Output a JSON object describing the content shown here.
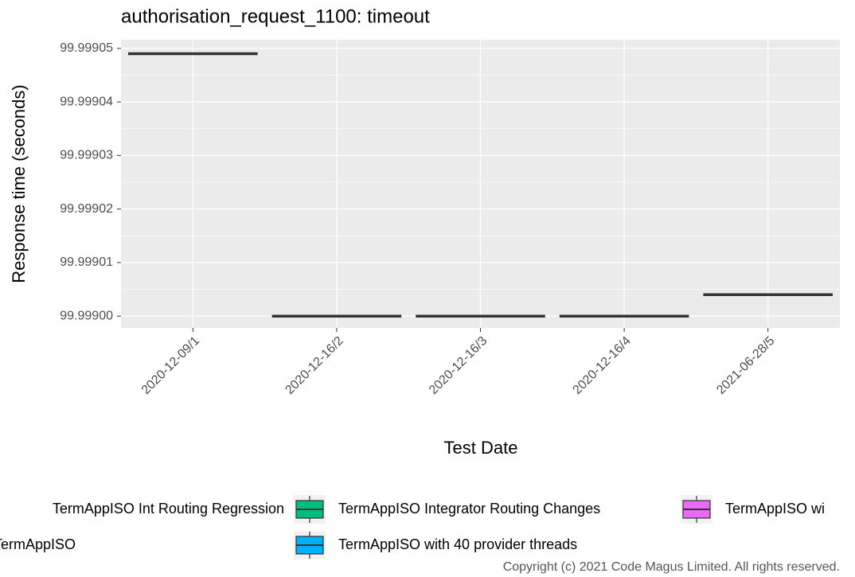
{
  "chart_data": {
    "type": "boxplot",
    "title": "authorisation_request_1100: timeout",
    "x_label": "Test Date",
    "y_label": "Response time (seconds)",
    "categories": [
      "2020-12-09/1",
      "2020-12-16/2",
      "2020-12-16/3",
      "2020-12-16/4",
      "2021-06-28/5"
    ],
    "values": [
      99.999049,
      99.999,
      99.999,
      99.999,
      99.999004
    ],
    "ylim": [
      99.9989978,
      99.9990516
    ],
    "yticks": [
      {
        "value": 99.999,
        "label": "99.99900"
      },
      99.99901,
      99.99902,
      99.99903,
      99.99904,
      99.99905
    ],
    "grid": true,
    "legend": [
      {
        "name": "TermAppISO Int Routing Regression"
      },
      {
        "name": "TermAppISO Integrator Routing Changes",
        "color": "#00BF7D"
      },
      {
        "name": "TermAppISO wi",
        "color": "#E76BF3"
      },
      {
        "name": "TermAppISO"
      },
      {
        "name": "TermAppISO with 40 provider threads",
        "color": "#00B0F6"
      }
    ],
    "footer": "Copyright (c) 2021 Code Magus Limited. All rights reserved."
  }
}
